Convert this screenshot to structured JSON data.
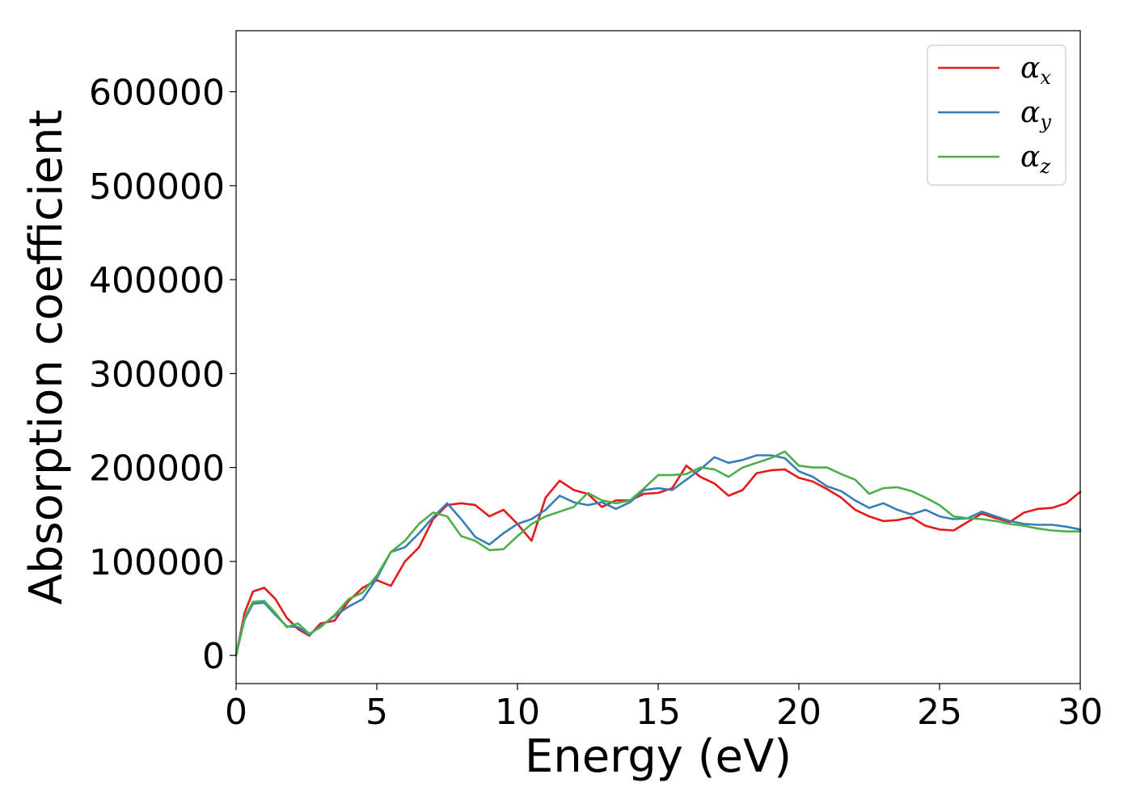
{
  "chart_data": {
    "type": "line",
    "title": "",
    "xlabel": "Energy (eV)",
    "ylabel": "Absorption coefficient",
    "xlim": [
      0,
      30
    ],
    "ylim": [
      -30000,
      665000
    ],
    "xticks": [
      0,
      5,
      10,
      15,
      20,
      25,
      30
    ],
    "xtick_labels": [
      "0",
      "5",
      "10",
      "15",
      "20",
      "25",
      "30"
    ],
    "yticks": [
      0,
      100000,
      200000,
      300000,
      400000,
      500000,
      600000
    ],
    "ytick_labels": [
      "0",
      "100000",
      "200000",
      "300000",
      "400000",
      "500000",
      "600000"
    ],
    "grid": false,
    "legend_position": "top-right",
    "series": [
      {
        "name": "α",
        "subscript": "x",
        "color": "#e41a1c",
        "x": [
          0,
          0.3,
          0.6,
          1.0,
          1.4,
          1.8,
          2.2,
          2.6,
          3.0,
          3.5,
          4.0,
          4.5,
          5.0,
          5.5,
          6.0,
          6.5,
          7.0,
          7.5,
          8.0,
          8.5,
          9.0,
          9.5,
          10.0,
          10.5,
          11.0,
          11.5,
          12.0,
          12.5,
          13.0,
          13.5,
          14.0,
          14.5,
          15.0,
          15.5,
          16.0,
          16.5,
          17.0,
          17.5,
          18.0,
          18.5,
          19.0,
          19.5,
          20.0,
          20.5,
          21.0,
          21.5,
          22.0,
          22.5,
          23.0,
          23.5,
          24.0,
          24.5,
          25.0,
          25.5,
          26.0,
          26.5,
          27.0,
          27.5,
          28.0,
          28.5,
          29.0,
          29.5,
          30.0
        ],
        "y": [
          0,
          45000,
          68000,
          72000,
          60000,
          40000,
          28000,
          21000,
          34000,
          37000,
          58000,
          72000,
          80000,
          74000,
          100000,
          115000,
          145000,
          160000,
          162000,
          160000,
          148000,
          155000,
          140000,
          122000,
          168000,
          186000,
          176000,
          172000,
          158000,
          165000,
          165000,
          172000,
          173000,
          178000,
          202000,
          190000,
          183000,
          170000,
          176000,
          194000,
          197000,
          198000,
          189000,
          185000,
          177000,
          168000,
          155000,
          148000,
          143000,
          144000,
          147000,
          138000,
          134000,
          133000,
          142000,
          151000,
          146000,
          142000,
          152000,
          156000,
          157000,
          162000,
          174000
        ]
      },
      {
        "name": "α",
        "subscript": "y",
        "color": "#377eb8",
        "x": [
          0,
          0.3,
          0.6,
          1.0,
          1.4,
          1.8,
          2.2,
          2.6,
          3.0,
          3.5,
          4.0,
          4.5,
          5.0,
          5.5,
          6.0,
          6.5,
          7.0,
          7.5,
          8.0,
          8.5,
          9.0,
          9.5,
          10.0,
          10.5,
          11.0,
          11.5,
          12.0,
          12.5,
          13.0,
          13.5,
          14.0,
          14.5,
          15.0,
          15.5,
          16.0,
          16.5,
          17.0,
          17.5,
          18.0,
          18.5,
          19.0,
          19.5,
          20.0,
          20.5,
          21.0,
          21.5,
          22.0,
          22.5,
          23.0,
          23.5,
          24.0,
          24.5,
          25.0,
          25.5,
          26.0,
          26.5,
          27.0,
          27.5,
          28.0,
          28.5,
          29.0,
          29.5,
          30.0
        ],
        "y": [
          0,
          38000,
          55000,
          56000,
          43000,
          31000,
          30000,
          22000,
          31000,
          42000,
          52000,
          60000,
          82000,
          110000,
          115000,
          130000,
          147000,
          162000,
          145000,
          126000,
          118000,
          130000,
          140000,
          145000,
          155000,
          170000,
          163000,
          160000,
          163000,
          156000,
          163000,
          176000,
          178000,
          176000,
          187000,
          198000,
          211000,
          205000,
          208000,
          213000,
          213000,
          210000,
          196000,
          190000,
          180000,
          175000,
          165000,
          157000,
          162000,
          155000,
          150000,
          155000,
          148000,
          145000,
          146000,
          153000,
          148000,
          143000,
          140000,
          139000,
          139000,
          137000,
          134000
        ]
      },
      {
        "name": "α",
        "subscript": "z",
        "color": "#4daf4a",
        "x": [
          0,
          0.3,
          0.6,
          1.0,
          1.4,
          1.8,
          2.2,
          2.6,
          3.0,
          3.5,
          4.0,
          4.5,
          5.0,
          5.5,
          6.0,
          6.5,
          7.0,
          7.5,
          8.0,
          8.5,
          9.0,
          9.5,
          10.0,
          10.5,
          11.0,
          11.5,
          12.0,
          12.5,
          13.0,
          13.5,
          14.0,
          14.5,
          15.0,
          15.5,
          16.0,
          16.5,
          17.0,
          17.5,
          18.0,
          18.5,
          19.0,
          19.5,
          20.0,
          20.5,
          21.0,
          21.5,
          22.0,
          22.5,
          23.0,
          23.5,
          24.0,
          24.5,
          25.0,
          25.5,
          26.0,
          26.5,
          27.0,
          27.5,
          28.0,
          28.5,
          29.0,
          29.5,
          30.0
        ],
        "y": [
          0,
          40000,
          57000,
          58000,
          45000,
          30000,
          34000,
          23000,
          30000,
          43000,
          60000,
          67000,
          85000,
          110000,
          122000,
          140000,
          152000,
          148000,
          127000,
          122000,
          112000,
          113000,
          127000,
          140000,
          148000,
          153000,
          158000,
          173000,
          165000,
          162000,
          165000,
          178000,
          192000,
          192000,
          193000,
          200000,
          198000,
          190000,
          200000,
          205000,
          210000,
          217000,
          202000,
          200000,
          200000,
          193000,
          187000,
          172000,
          178000,
          179000,
          175000,
          168000,
          160000,
          148000,
          146000,
          145000,
          143000,
          140000,
          138000,
          135000,
          133000,
          132000,
          132000
        ]
      }
    ]
  }
}
